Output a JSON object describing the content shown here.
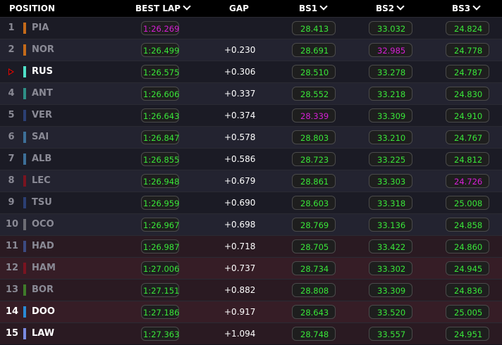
{
  "header": {
    "position": "POSITION",
    "best_lap": "BEST LAP",
    "gap": "GAP",
    "bs1": "BS1",
    "bs2": "BS2",
    "bs3": "BS3"
  },
  "colors": {
    "normal_time": "#39e639",
    "best_time": "#d61fd6",
    "marker": "#e10600"
  },
  "rows": [
    {
      "pos": "1",
      "code": "PIA",
      "team_color": "#c46a1a",
      "best_lap": "1:26.269",
      "gap": "",
      "bs1": "28.413",
      "bs2": "33.032",
      "bs3": "24.824",
      "best_lap_is_best": true
    },
    {
      "pos": "2",
      "code": "NOR",
      "team_color": "#c46a1a",
      "best_lap": "1:26.499",
      "gap": "+0.230",
      "bs1": "28.691",
      "bs2": "32.985",
      "bs3": "24.778",
      "bs2_is_best": true
    },
    {
      "pos": "",
      "code": "RUS",
      "team_color": "#4fe0c8",
      "best_lap": "1:26.575",
      "gap": "+0.306",
      "bs1": "28.510",
      "bs2": "33.278",
      "bs3": "24.787",
      "highlighted": true,
      "marker": "play-marker"
    },
    {
      "pos": "4",
      "code": "ANT",
      "team_color": "#2e8f86",
      "best_lap": "1:26.606",
      "gap": "+0.337",
      "bs1": "28.552",
      "bs2": "33.218",
      "bs3": "24.830"
    },
    {
      "pos": "5",
      "code": "VER",
      "team_color": "#2b3f73",
      "best_lap": "1:26.643",
      "gap": "+0.374",
      "bs1": "28.339",
      "bs2": "33.309",
      "bs3": "24.910",
      "bs1_is_best": true
    },
    {
      "pos": "6",
      "code": "SAI",
      "team_color": "#3d6f98",
      "best_lap": "1:26.847",
      "gap": "+0.578",
      "bs1": "28.803",
      "bs2": "33.210",
      "bs3": "24.767"
    },
    {
      "pos": "7",
      "code": "ALB",
      "team_color": "#3d6f98",
      "best_lap": "1:26.855",
      "gap": "+0.586",
      "bs1": "28.723",
      "bs2": "33.225",
      "bs3": "24.812"
    },
    {
      "pos": "8",
      "code": "LEC",
      "team_color": "#7a1420",
      "best_lap": "1:26.948",
      "gap": "+0.679",
      "bs1": "28.861",
      "bs2": "33.303",
      "bs3": "24.726",
      "bs3_is_best": true
    },
    {
      "pos": "9",
      "code": "TSU",
      "team_color": "#2b3f73",
      "best_lap": "1:26.959",
      "gap": "+0.690",
      "bs1": "28.603",
      "bs2": "33.318",
      "bs3": "25.008"
    },
    {
      "pos": "10",
      "code": "OCO",
      "team_color": "#6c6c74",
      "best_lap": "1:26.967",
      "gap": "+0.698",
      "bs1": "28.769",
      "bs2": "33.136",
      "bs3": "24.858"
    },
    {
      "pos": "11",
      "code": "HAD",
      "team_color": "#3c4a80",
      "best_lap": "1:26.987",
      "gap": "+0.718",
      "bs1": "28.705",
      "bs2": "33.422",
      "bs3": "24.860"
    },
    {
      "pos": "12",
      "code": "HAM",
      "team_color": "#7a1420",
      "best_lap": "1:27.006",
      "gap": "+0.737",
      "bs1": "28.734",
      "bs2": "33.302",
      "bs3": "24.945"
    },
    {
      "pos": "13",
      "code": "BOR",
      "team_color": "#3f7a2a",
      "best_lap": "1:27.151",
      "gap": "+0.882",
      "bs1": "28.808",
      "bs2": "33.309",
      "bs3": "24.836"
    },
    {
      "pos": "14",
      "code": "DOO",
      "team_color": "#2a8ad6",
      "best_lap": "1:27.186",
      "gap": "+0.917",
      "bs1": "28.643",
      "bs2": "33.520",
      "bs3": "25.005",
      "highlighted": true
    },
    {
      "pos": "15",
      "code": "LAW",
      "team_color": "#7a8ae0",
      "best_lap": "1:27.363",
      "gap": "+1.094",
      "bs1": "28.748",
      "bs2": "33.557",
      "bs3": "24.951",
      "highlighted": true
    }
  ]
}
